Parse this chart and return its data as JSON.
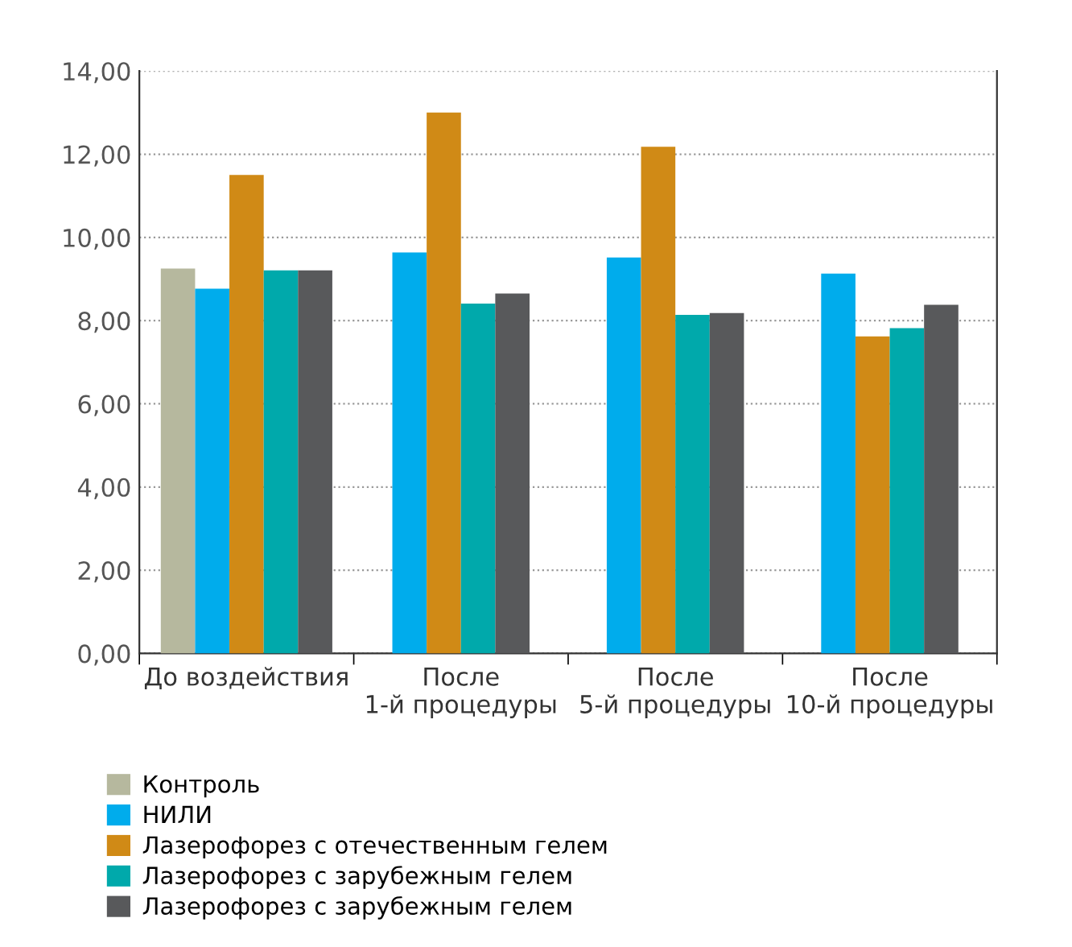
{
  "chart_data": {
    "type": "bar",
    "categories": [
      "До воздействия",
      "После\n1-й процедуры",
      "После\n5-й процедуры",
      "После\n10-й процедуры"
    ],
    "series": [
      {
        "name": "Контроль",
        "color": "#b6b89e",
        "values": [
          9.25,
          null,
          null,
          null
        ]
      },
      {
        "name": "НИЛИ",
        "color": "#00acec",
        "values": [
          8.77,
          9.64,
          9.52,
          9.13
        ]
      },
      {
        "name": "Лазерофорез с отечественным гелем",
        "color": "#d08a16",
        "values": [
          11.5,
          13.0,
          12.18,
          7.62
        ]
      },
      {
        "name": "Лазерофорез с зарубежным гелем",
        "color": "#00a9ab",
        "values": [
          9.21,
          8.41,
          8.14,
          7.82
        ]
      },
      {
        "name": "Лазерофорез с зарубежным гелем",
        "color": "#58595b",
        "values": [
          9.21,
          8.65,
          8.18,
          8.38
        ]
      }
    ],
    "ylim": [
      0,
      14
    ],
    "yticks": [
      {
        "value": 0,
        "label": "0,00"
      },
      {
        "value": 2,
        "label": "2,00"
      },
      {
        "value": 4,
        "label": "4,00"
      },
      {
        "value": 6,
        "label": "6,00"
      },
      {
        "value": 8,
        "label": "8,00"
      },
      {
        "value": 10,
        "label": "10,00"
      },
      {
        "value": 12,
        "label": "12,00"
      },
      {
        "value": 14,
        "label": "14,00"
      }
    ],
    "grid": "y",
    "legend": "bottom"
  }
}
